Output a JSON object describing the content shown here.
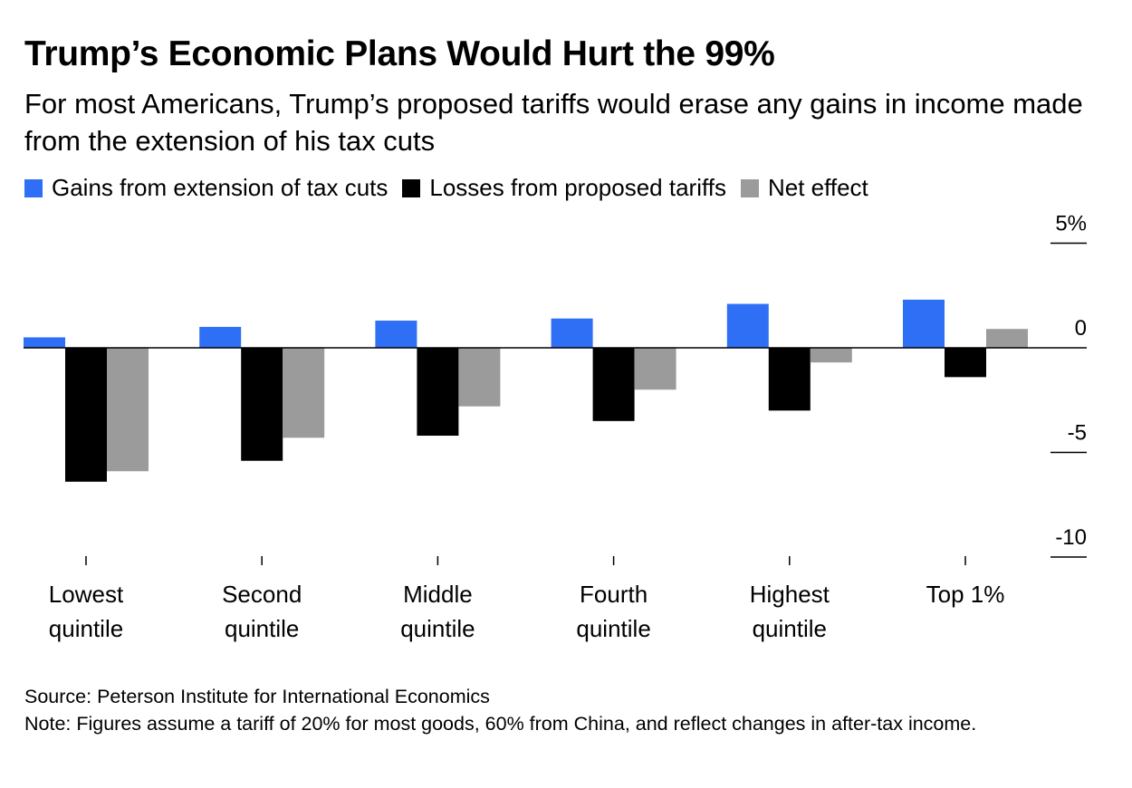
{
  "title": "Trump’s Economic Plans Would Hurt the 99%",
  "subtitle": "For most Americans, Trump’s proposed tariffs would erase any gains in income made from the extension of his tax cuts",
  "legend": [
    {
      "label": "Gains from extension of tax cuts",
      "color": "#2f6ff5"
    },
    {
      "label": "Losses from proposed tariffs",
      "color": "#000000"
    },
    {
      "label": "Net effect",
      "color": "#9b9b9b"
    }
  ],
  "footer": {
    "source": "Source: Peterson Institute for International Economics",
    "note": "Note: Figures assume a tariff of 20% for most goods, 60% from China, and reflect changes in after-tax income."
  },
  "chart_data": {
    "type": "bar",
    "categories": [
      [
        "Lowest",
        "quintile"
      ],
      [
        "Second",
        "quintile"
      ],
      [
        "Middle",
        "quintile"
      ],
      [
        "Fourth",
        "quintile"
      ],
      [
        "Highest",
        "quintile"
      ],
      [
        "Top 1%"
      ]
    ],
    "series": [
      {
        "name": "Gains from extension of tax cuts",
        "color": "#2f6ff5",
        "values": [
          0.5,
          1.0,
          1.3,
          1.4,
          2.1,
          2.3
        ]
      },
      {
        "name": "Losses from proposed tariffs",
        "color": "#000000",
        "values": [
          -6.4,
          -5.4,
          -4.2,
          -3.5,
          -3.0,
          -1.4
        ]
      },
      {
        "name": "Net effect",
        "color": "#9b9b9b",
        "values": [
          -5.9,
          -4.3,
          -2.8,
          -2.0,
          -0.7,
          0.9
        ]
      }
    ],
    "yticks": [
      {
        "value": 5,
        "label": "5%"
      },
      {
        "value": 0,
        "label": "0"
      },
      {
        "value": -5,
        "label": "-5"
      },
      {
        "value": -10,
        "label": "-10"
      }
    ],
    "ylim": [
      -10,
      5
    ],
    "zero_line": true,
    "legend_position": "top-left"
  }
}
